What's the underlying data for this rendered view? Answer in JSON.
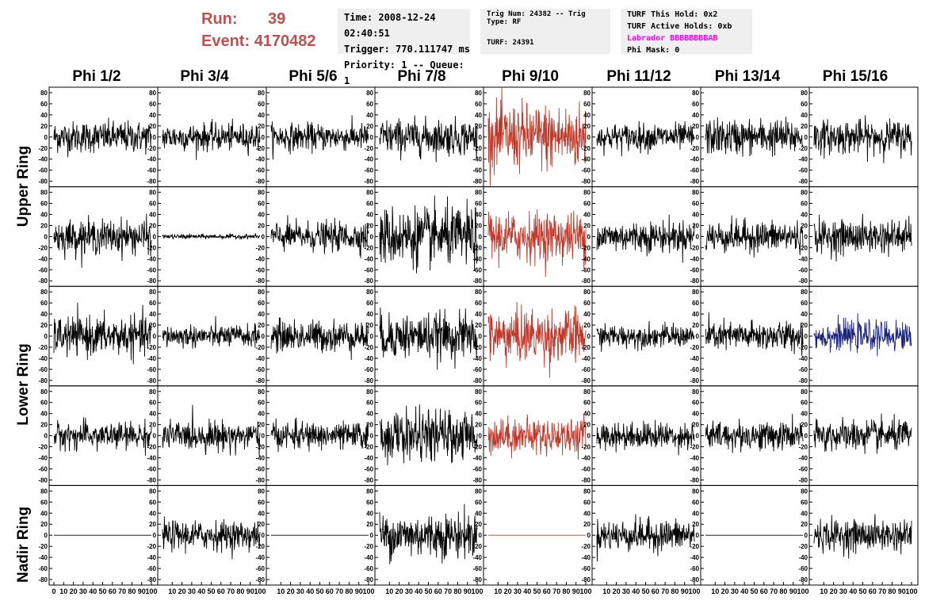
{
  "run": {
    "run_label": "Run:",
    "run_value": "39",
    "event_label": "Event:",
    "event_value": "4170482"
  },
  "info_box": {
    "time": "Time: 2008-12-24 02:40:51",
    "trigger": "Trigger: 770.111747 ms",
    "priority": "Priority: 1 -- Queue: 1"
  },
  "trig_box": {
    "trig_num": "Trig Num: 24382 -- Trig Type: RF",
    "turf": "TURF: 24391"
  },
  "turf_box": {
    "this_hold": "TURF This Hold: 0x2",
    "active_holds": "TURF Active Holds: 0xb",
    "labrador": "Labrador BBBBBBBBAB",
    "phi_mask": "Phi Mask: 0"
  },
  "chart_data": {
    "type": "line",
    "title": "",
    "columns": [
      "Phi 1/2",
      "Phi 3/4",
      "Phi 5/6",
      "Phi 7/8",
      "Phi 9/10",
      "Phi 11/12",
      "Phi 13/14",
      "Phi 15/16"
    ],
    "row_groups": [
      "Upper Ring",
      "Lower Ring",
      "Nadir Ring"
    ],
    "ylim": [
      -90,
      90
    ],
    "xlim": [
      0,
      100
    ],
    "y_ticks": [
      "80",
      "60",
      "40",
      "20",
      "0",
      "-20",
      "-40",
      "-60",
      "-80"
    ],
    "x_ticks": [
      "0",
      "10",
      "20",
      "30",
      "40",
      "50",
      "60",
      "70",
      "80",
      "90",
      "100"
    ],
    "colors": {
      "default": "#000000",
      "triggered": "#c0392b",
      "highlight": "#1a237e"
    },
    "panels": [
      {
        "row": 0,
        "col": 0,
        "amp": 14,
        "color": "default"
      },
      {
        "row": 0,
        "col": 1,
        "amp": 12,
        "color": "default"
      },
      {
        "row": 0,
        "col": 2,
        "amp": 12,
        "color": "default"
      },
      {
        "row": 0,
        "col": 3,
        "amp": 16,
        "color": "default"
      },
      {
        "row": 0,
        "col": 4,
        "amp": 30,
        "color": "triggered"
      },
      {
        "row": 0,
        "col": 5,
        "amp": 12,
        "color": "default"
      },
      {
        "row": 0,
        "col": 6,
        "amp": 16,
        "color": "default"
      },
      {
        "row": 0,
        "col": 7,
        "amp": 15,
        "color": "default"
      },
      {
        "row": 1,
        "col": 0,
        "amp": 15,
        "color": "default"
      },
      {
        "row": 1,
        "col": 1,
        "amp": 2,
        "color": "default"
      },
      {
        "row": 1,
        "col": 2,
        "amp": 13,
        "color": "default"
      },
      {
        "row": 1,
        "col": 3,
        "amp": 26,
        "color": "default"
      },
      {
        "row": 1,
        "col": 4,
        "amp": 22,
        "color": "triggered"
      },
      {
        "row": 1,
        "col": 5,
        "amp": 14,
        "color": "default"
      },
      {
        "row": 1,
        "col": 6,
        "amp": 14,
        "color": "default"
      },
      {
        "row": 1,
        "col": 7,
        "amp": 15,
        "color": "default"
      },
      {
        "row": 2,
        "col": 0,
        "amp": 17,
        "color": "default"
      },
      {
        "row": 2,
        "col": 1,
        "amp": 10,
        "color": "default"
      },
      {
        "row": 2,
        "col": 2,
        "amp": 14,
        "color": "default"
      },
      {
        "row": 2,
        "col": 3,
        "amp": 20,
        "color": "default"
      },
      {
        "row": 2,
        "col": 4,
        "amp": 24,
        "color": "triggered"
      },
      {
        "row": 2,
        "col": 5,
        "amp": 10,
        "color": "default"
      },
      {
        "row": 2,
        "col": 6,
        "amp": 13,
        "color": "default"
      },
      {
        "row": 2,
        "col": 7,
        "amp": 13,
        "color": "highlight"
      },
      {
        "row": 3,
        "col": 0,
        "amp": 12,
        "color": "default"
      },
      {
        "row": 3,
        "col": 1,
        "amp": 13,
        "color": "default"
      },
      {
        "row": 3,
        "col": 2,
        "amp": 12,
        "color": "default"
      },
      {
        "row": 3,
        "col": 3,
        "amp": 22,
        "color": "default"
      },
      {
        "row": 3,
        "col": 4,
        "amp": 16,
        "color": "triggered"
      },
      {
        "row": 3,
        "col": 5,
        "amp": 12,
        "color": "default"
      },
      {
        "row": 3,
        "col": 6,
        "amp": 13,
        "color": "default"
      },
      {
        "row": 3,
        "col": 7,
        "amp": 14,
        "color": "default"
      },
      {
        "row": 4,
        "col": 0,
        "amp": 0,
        "color": "default"
      },
      {
        "row": 4,
        "col": 1,
        "amp": 13,
        "color": "default"
      },
      {
        "row": 4,
        "col": 2,
        "amp": 0,
        "color": "default"
      },
      {
        "row": 4,
        "col": 3,
        "amp": 20,
        "color": "default"
      },
      {
        "row": 4,
        "col": 4,
        "amp": 0,
        "color": "triggered"
      },
      {
        "row": 4,
        "col": 5,
        "amp": 14,
        "color": "default"
      },
      {
        "row": 4,
        "col": 6,
        "amp": 0,
        "color": "default"
      },
      {
        "row": 4,
        "col": 7,
        "amp": 14,
        "color": "default"
      }
    ]
  }
}
